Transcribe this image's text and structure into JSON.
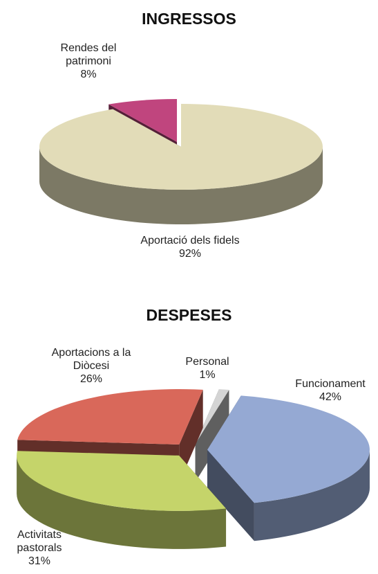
{
  "chart_data": [
    {
      "type": "pie3d",
      "title": "INGRESSOS",
      "categories": [
        "Aportació dels fidels",
        "Rendes del patrimoni"
      ],
      "values": [
        92,
        8
      ],
      "value_labels": [
        "92%",
        "8%"
      ],
      "colors": [
        "#e2dcb8",
        "#c0457e"
      ]
    },
    {
      "type": "pie3d",
      "title": "DESPESES",
      "categories": [
        "Funcionament",
        "Activitats pastorals",
        "Aportacions a la Diòcesi",
        "Personal"
      ],
      "values": [
        42,
        31,
        26,
        1
      ],
      "value_labels": [
        "42%",
        "31%",
        "26%",
        "1%"
      ],
      "colors": [
        "#95a9d3",
        "#c5d46a",
        "#d9685a",
        "#d4d4d4"
      ]
    }
  ]
}
